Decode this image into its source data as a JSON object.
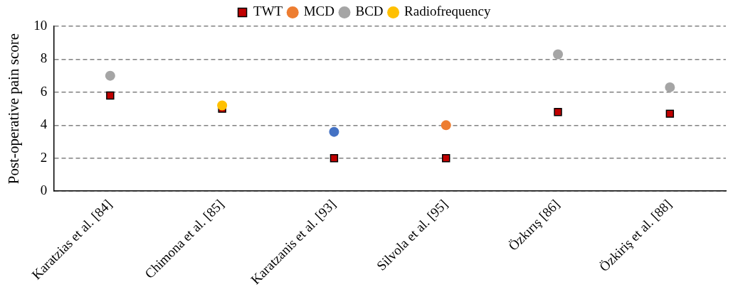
{
  "chart_data": {
    "type": "scatter",
    "ylabel": "Post-operative pain score",
    "categories": [
      "Karatzias et al. [84]",
      "Chimona et al. [85]",
      "Karatzanis et al. [93]",
      "Silvola et al. [95]",
      "Özkırış [86]",
      "Özkiriş et al. [88]"
    ],
    "series": [
      {
        "name": "TWT",
        "color": "#c00000",
        "marker": "square",
        "values": [
          5.8,
          5.0,
          2.0,
          2.0,
          4.8,
          4.7
        ]
      },
      {
        "name": "MCD",
        "color": "#ed7d31",
        "marker": "circle",
        "values": [
          null,
          null,
          null,
          4.0,
          null,
          null
        ]
      },
      {
        "name": "BCD",
        "color": "#a5a5a5",
        "marker": "circle",
        "values": [
          7.0,
          null,
          null,
          null,
          8.3,
          6.3
        ]
      },
      {
        "name": "Radiofrequency",
        "color": "#ffc000",
        "marker": "circle",
        "values": [
          null,
          5.2,
          null,
          null,
          null,
          null
        ]
      },
      {
        "color": "#4472c4",
        "marker": "circle",
        "values": [
          null,
          null,
          3.6,
          null,
          null,
          null
        ]
      }
    ],
    "ylim": [
      0,
      10
    ],
    "yticks": [
      0,
      2,
      4,
      6,
      8,
      10
    ],
    "grid": "y",
    "legend": "top"
  }
}
